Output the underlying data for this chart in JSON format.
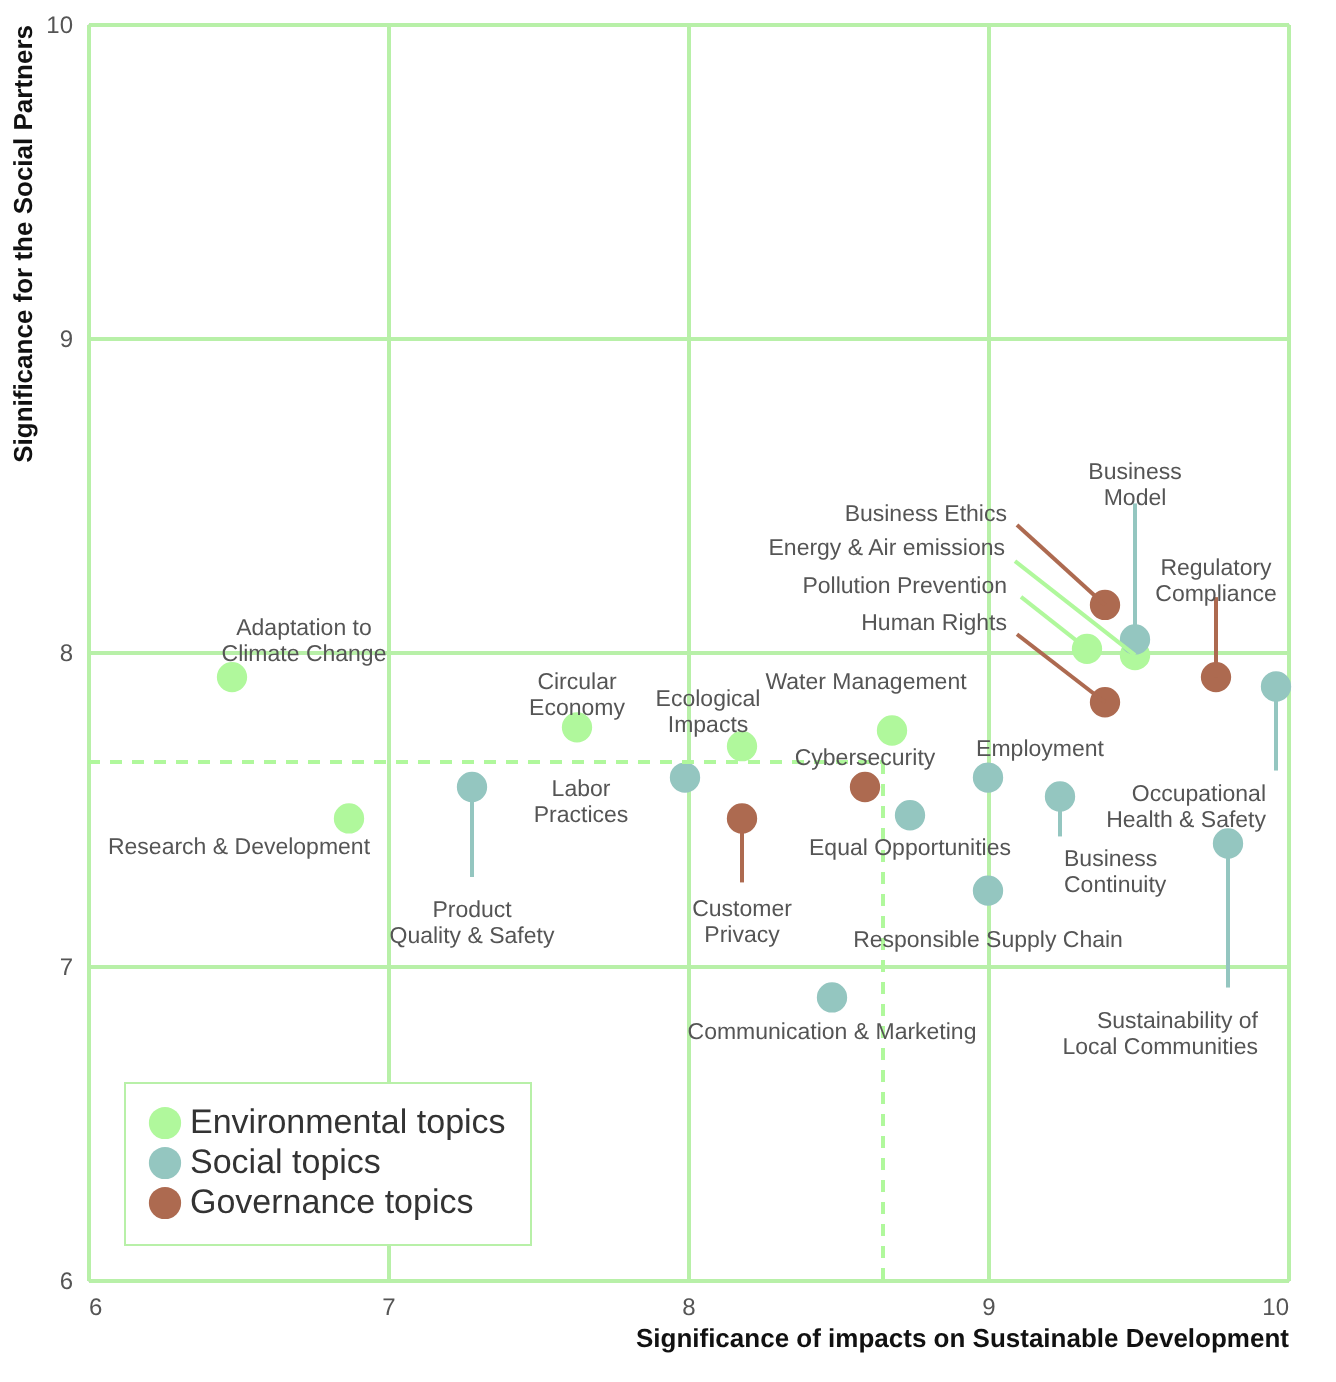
{
  "chart_data": {
    "type": "scatter",
    "xlabel": "Significance of impacts on Sustainable Development",
    "ylabel": "Significance for the Social Partners",
    "xlim": [
      6,
      10
    ],
    "ylim": [
      6,
      10
    ],
    "xticks": [
      6,
      7,
      8,
      9,
      10
    ],
    "yticks": [
      6,
      7,
      8,
      9,
      10
    ],
    "grid": true,
    "legend": "bottom left",
    "marker": "circle",
    "series": [
      {
        "name": "Environmental topics",
        "color": "#b0f89c",
        "x": [
          6.48,
          6.87,
          7.63,
          8.18,
          8.68,
          9.33,
          9.49
        ],
        "values": [
          7.92,
          7.47,
          7.76,
          7.7,
          7.75,
          8.01,
          7.99
        ]
      },
      {
        "name": "Social topics",
        "color": "#94c6c0",
        "x": [
          7.28,
          7.99,
          9.49,
          9.96,
          9.0,
          8.74,
          9.24,
          9.0,
          9.8,
          8.48
        ],
        "values": [
          7.57,
          7.6,
          8.04,
          7.89,
          7.6,
          7.48,
          7.54,
          7.24,
          7.39,
          6.9
        ]
      },
      {
        "name": "Governance topics",
        "color": "#ad6a50",
        "x": [
          9.39,
          9.39,
          9.76,
          8.59,
          8.18
        ],
        "values": [
          8.15,
          7.84,
          7.92,
          7.57,
          7.47
        ]
      }
    ],
    "ref_lines": [
      {
        "axis": "x",
        "value": 8.65,
        "color": "#b0f89c",
        "line_style": "dashed"
      },
      {
        "axis": "y",
        "value": 7.65,
        "color": "#b0f89c",
        "line_style": "dashed"
      }
    ],
    "annotations": [
      {
        "text": "Adaptation to\nClimate Change",
        "x": 6.48,
        "y": 7.92
      },
      {
        "text": "Research & Development",
        "x": 6.87,
        "y": 7.47
      },
      {
        "text": "Circular\nEconomy",
        "x": 7.63,
        "y": 7.76
      },
      {
        "text": "Ecological\nImpacts",
        "x": 8.18,
        "y": 7.7
      },
      {
        "text": "Water Management",
        "x": 8.68,
        "y": 7.75
      },
      {
        "text": "Pollution Prevention",
        "x": 9.33,
        "y": 8.01
      },
      {
        "text": "Energy & Air emissions",
        "x": 9.49,
        "y": 7.99
      },
      {
        "text": "Product\nQuality & Safety",
        "x": 7.28,
        "y": 7.57
      },
      {
        "text": "Labor\nPractices",
        "x": 7.99,
        "y": 7.6
      },
      {
        "text": "Business\nModel",
        "x": 9.49,
        "y": 8.04
      },
      {
        "text": "Occupational\nHealth & Safety",
        "x": 9.96,
        "y": 7.89
      },
      {
        "text": "Employment",
        "x": 9.0,
        "y": 7.6
      },
      {
        "text": "Equal Opportunities",
        "x": 8.74,
        "y": 7.48
      },
      {
        "text": "Business\nContinuity",
        "x": 9.24,
        "y": 7.54
      },
      {
        "text": "Responsible Supply Chain",
        "x": 9.0,
        "y": 7.24
      },
      {
        "text": "Sustainability of\nLocal Communities",
        "x": 9.8,
        "y": 7.39
      },
      {
        "text": "Communication & Marketing",
        "x": 8.48,
        "y": 6.9
      },
      {
        "text": "Business Ethics",
        "x": 9.39,
        "y": 8.15
      },
      {
        "text": "Human Rights",
        "x": 9.39,
        "y": 7.84
      },
      {
        "text": "Regulatory\nCompliance",
        "x": 9.76,
        "y": 7.92
      },
      {
        "text": "Cybersecurity",
        "x": 8.59,
        "y": 7.57
      },
      {
        "text": "Customer\nPrivacy",
        "x": 8.18,
        "y": 7.47
      }
    ]
  }
}
